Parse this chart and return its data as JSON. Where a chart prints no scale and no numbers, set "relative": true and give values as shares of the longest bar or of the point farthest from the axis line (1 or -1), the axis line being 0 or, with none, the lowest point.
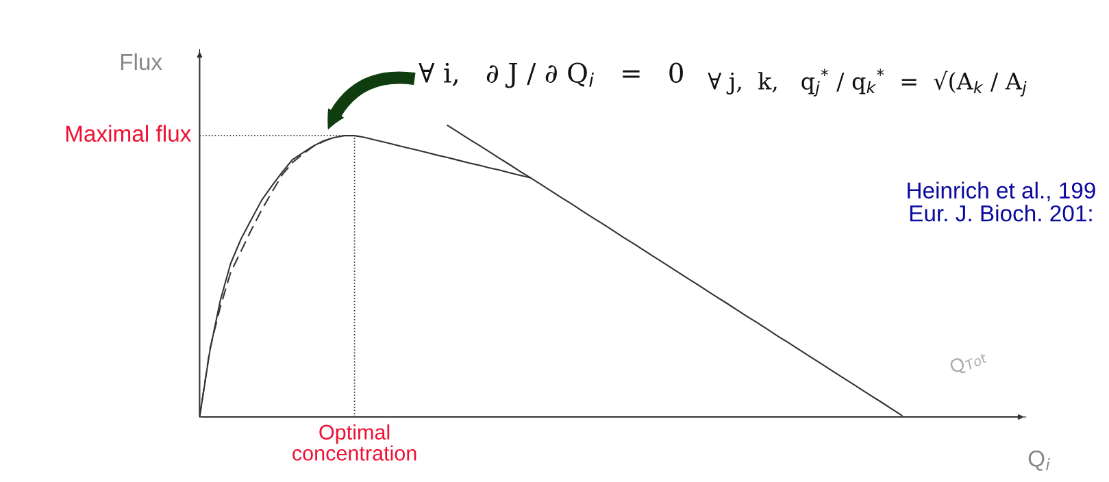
{
  "chart_data": {
    "type": "line",
    "relative": true,
    "ylabel": "Flux",
    "xlabel": "Q$_{i}$",
    "line_style": "solid",
    "marker": "none",
    "grid": false,
    "categories": [
      null,
      null,
      null,
      null,
      null,
      null,
      null,
      null,
      null,
      null,
      null,
      null,
      null,
      null,
      null,
      null,
      null,
      null,
      null,
      null,
      null,
      null,
      null,
      null,
      null,
      null,
      null,
      null,
      null,
      null,
      null,
      null,
      null,
      null,
      null,
      null,
      null,
      null,
      null,
      null,
      null,
      null,
      null,
      null,
      null,
      null,
      null,
      null,
      null,
      null,
      null,
      null,
      null,
      null,
      null,
      null,
      null,
      null,
      null,
      null,
      null,
      null,
      null,
      null,
      null,
      null,
      null,
      null,
      null,
      null,
      null,
      null,
      null,
      null,
      null,
      null,
      null,
      null,
      null,
      null,
      null
    ],
    "series": [
      {
        "color": "#333333",
        "values": [
          0,
          0.228,
          0.399,
          0.526,
          0.61,
          0.677,
          0.743,
          0.793,
          0.84,
          0.883,
          0.906,
          0.929,
          0.947,
          0.958,
          0.965,
          0.965,
          0.959,
          0.95,
          0.942,
          0.933,
          0.924,
          0.916,
          0.907,
          0.898,
          0.89,
          0.881,
          0.872,
          0.864,
          0.855,
          0.847,
          0.838,
          0.829,
          0.821,
          0.799,
          0.776,
          0.753,
          0.731,
          0.708,
          0.685,
          0.663,
          0.64,
          0.617,
          0.595,
          0.572,
          0.549,
          0.527,
          0.504,
          0.481,
          0.459,
          0.436,
          0.413,
          0.391,
          0.368,
          0.345,
          0.323,
          0.3,
          0.277,
          0.255,
          0.232,
          0.209,
          0.187,
          0.164,
          0.141,
          0.119,
          0.096,
          0.073,
          0.051,
          0.028,
          0.005,
          null,
          null,
          null,
          null,
          null,
          null,
          null,
          null,
          null,
          null,
          null,
          null
        ]
      },
      {
        "color": "#333333",
        "line_style": "dashed",
        "values": [
          0,
          0.234,
          0.377,
          0.495,
          0.568,
          0.641,
          0.71,
          0.771,
          0.831,
          0.873,
          0.902,
          0.928,
          0.945,
          0.96,
          null,
          null,
          null,
          null,
          null,
          null,
          null,
          null,
          null,
          null,
          null,
          null,
          null,
          null,
          null,
          null,
          null,
          null,
          null,
          null,
          null,
          null,
          null,
          null,
          null,
          null,
          null,
          null,
          null,
          null,
          null,
          null,
          null,
          null,
          null,
          null,
          null,
          null,
          null,
          null,
          null,
          null,
          null,
          null,
          null,
          null,
          null,
          null,
          null,
          null,
          null,
          null,
          null,
          null,
          null,
          null,
          null,
          null,
          null,
          null,
          null,
          null,
          null,
          null,
          null,
          null,
          null
        ]
      },
      {
        "color": "#333333",
        "values": [
          null,
          null,
          null,
          null,
          null,
          null,
          null,
          null,
          null,
          null,
          null,
          null,
          null,
          null,
          null,
          null,
          null,
          null,
          null,
          null,
          null,
          null,
          null,
          null,
          1,
          0.978,
          0.955,
          0.933,
          0.911,
          0.888,
          0.866,
          0.843,
          0.821,
          null,
          null,
          null,
          null,
          null,
          null,
          null,
          null,
          null,
          null,
          null,
          null,
          null,
          null,
          null,
          null,
          null,
          null,
          null,
          null,
          null,
          null,
          null,
          null,
          null,
          null,
          null,
          null,
          null,
          null,
          null,
          null,
          null,
          null,
          null,
          null,
          null,
          null,
          null,
          null,
          null,
          null,
          null,
          null,
          null,
          null,
          null,
          null
        ]
      }
    ],
    "annotations": [
      "∀ i,   ∂ J / ∂ Q$_{i}$   =   0",
      "∀ j,  k,   q$_{j}$$^{*}$ / q$_{k}$$^{*}$  =  √(A$_{k}$ / A$_{j}$",
      "Heinrich et al., 199\nEur. J. Bioch. 201:",
      "Q$_{Tot}$",
      "Maximal flux",
      "Optimal\nconcentration"
    ]
  }
}
